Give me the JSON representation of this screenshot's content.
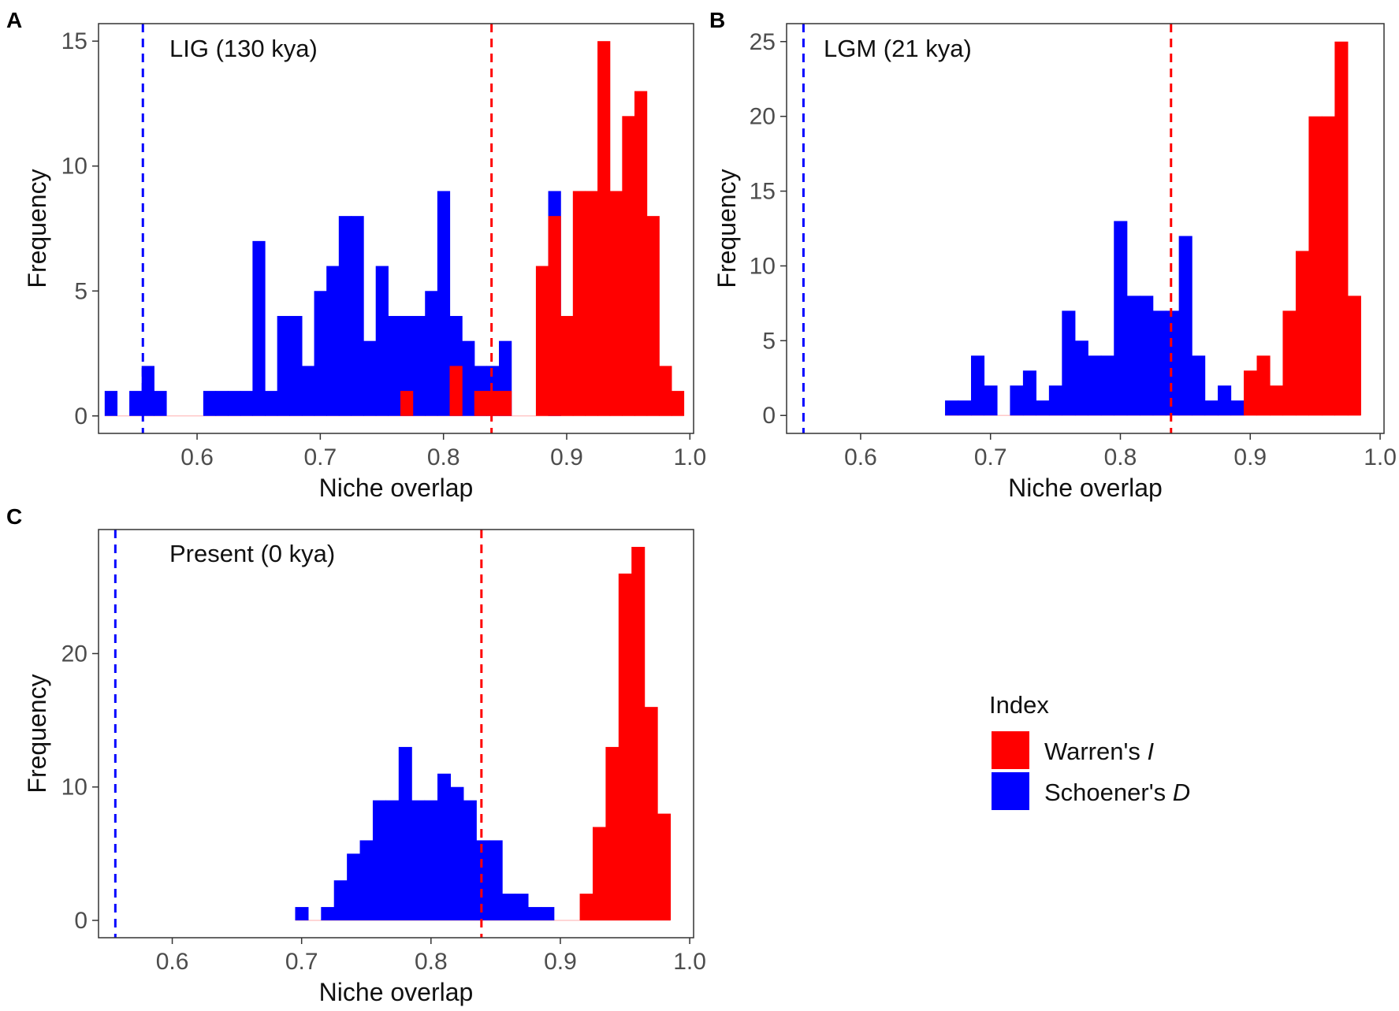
{
  "legend": {
    "title": "Index",
    "items": [
      {
        "label_prefix": "Warren's ",
        "label_symbol": "I",
        "color": "#ff0000"
      },
      {
        "label_prefix": "Schoener's ",
        "label_symbol": "D",
        "color": "#0000ff"
      }
    ]
  },
  "chart_data": [
    {
      "type": "histogram",
      "panel_label": "A",
      "annotation": "LIG (130 kya)",
      "xlabel": "Niche overlap",
      "ylabel": "Frequency",
      "xlim": [
        0.52,
        1.003
      ],
      "ylim": [
        -0.7,
        15.7
      ],
      "xticks": [
        0.6,
        0.7,
        0.8,
        0.9,
        1.0
      ],
      "xtick_labels": [
        "0.6",
        "0.7",
        "0.8",
        "0.9",
        "1.0"
      ],
      "yticks": [
        0,
        5,
        10,
        15
      ],
      "ytick_labels": [
        "0",
        "5",
        "10",
        "15"
      ],
      "bin_width": 0.01,
      "x": [
        0.53,
        0.54,
        0.55,
        0.56,
        0.57,
        0.58,
        0.59,
        0.6,
        0.61,
        0.62,
        0.63,
        0.64,
        0.65,
        0.66,
        0.67,
        0.68,
        0.69,
        0.7,
        0.71,
        0.72,
        0.73,
        0.74,
        0.75,
        0.76,
        0.77,
        0.78,
        0.79,
        0.8,
        0.81,
        0.82,
        0.83,
        0.84,
        0.85,
        0.86,
        0.87,
        0.88,
        0.89,
        0.9,
        0.91,
        0.92,
        0.93,
        0.94,
        0.95,
        0.96,
        0.97,
        0.98,
        0.99
      ],
      "series": [
        {
          "name": "Schoener's D",
          "color": "#0000ff",
          "values": [
            1,
            0,
            1,
            2,
            1,
            0,
            0,
            0,
            1,
            1,
            1,
            1,
            7,
            1,
            4,
            4,
            2,
            5,
            6,
            8,
            8,
            3,
            6,
            4,
            4,
            4,
            5,
            9,
            4,
            3,
            2,
            2,
            3,
            0,
            0,
            0,
            9,
            0,
            0,
            0,
            0,
            0,
            0,
            0,
            0,
            0,
            0
          ]
        },
        {
          "name": "Warren's I",
          "color": "#ff0000",
          "values": [
            0,
            0,
            0,
            0,
            0,
            0,
            0,
            0,
            0,
            0,
            0,
            0,
            0,
            0,
            0,
            0,
            0,
            0,
            0,
            0,
            0,
            0,
            0,
            0,
            1,
            0,
            0,
            0,
            2,
            0,
            1,
            1,
            1,
            0,
            0,
            6,
            8,
            4,
            9,
            9,
            15,
            9,
            12,
            13,
            8,
            2,
            1
          ]
        }
      ],
      "vlines": [
        {
          "x": 0.556,
          "color": "#0000ff",
          "style": "dashed"
        },
        {
          "x": 0.839,
          "color": "#ff0000",
          "style": "dashed"
        }
      ]
    },
    {
      "type": "histogram",
      "panel_label": "B",
      "annotation": "LGM (21 kya)",
      "xlabel": "Niche overlap",
      "ylabel": "Frequency",
      "xlim": [
        0.543,
        1.003
      ],
      "ylim": [
        -1.2,
        26.2
      ],
      "xticks": [
        0.6,
        0.7,
        0.8,
        0.9,
        1.0
      ],
      "xtick_labels": [
        "0.6",
        "0.7",
        "0.8",
        "0.9",
        "1.0"
      ],
      "yticks": [
        0,
        5,
        10,
        15,
        20,
        25
      ],
      "ytick_labels": [
        "0",
        "5",
        "10",
        "15",
        "20",
        "25"
      ],
      "bin_width": 0.01,
      "x": [
        0.67,
        0.68,
        0.69,
        0.7,
        0.71,
        0.72,
        0.73,
        0.74,
        0.75,
        0.76,
        0.77,
        0.78,
        0.79,
        0.8,
        0.81,
        0.82,
        0.83,
        0.84,
        0.85,
        0.86,
        0.87,
        0.88,
        0.89,
        0.9,
        0.91,
        0.92,
        0.93,
        0.94,
        0.95,
        0.96,
        0.97,
        0.98
      ],
      "series": [
        {
          "name": "Schoener's D",
          "color": "#0000ff",
          "values": [
            1,
            1,
            4,
            2,
            0,
            2,
            3,
            1,
            2,
            7,
            5,
            4,
            4,
            13,
            8,
            8,
            7,
            7,
            12,
            4,
            1,
            2,
            1,
            0,
            0,
            0,
            0,
            0,
            0,
            0,
            0,
            0
          ]
        },
        {
          "name": "Warren's I",
          "color": "#ff0000",
          "values": [
            0,
            0,
            0,
            0,
            0,
            0,
            0,
            0,
            0,
            0,
            0,
            0,
            0,
            0,
            0,
            0,
            0,
            0,
            0,
            0,
            0,
            0,
            0,
            3,
            4,
            2,
            7,
            11,
            20,
            20,
            25,
            8
          ]
        }
      ],
      "vlines": [
        {
          "x": 0.556,
          "color": "#0000ff",
          "style": "dashed"
        },
        {
          "x": 0.839,
          "color": "#ff0000",
          "style": "dashed"
        }
      ]
    },
    {
      "type": "histogram",
      "panel_label": "C",
      "annotation": "Present (0 kya)",
      "xlabel": "Niche overlap",
      "ylabel": "Frequency",
      "xlim": [
        0.543,
        1.003
      ],
      "ylim": [
        -1.3,
        29.3
      ],
      "xticks": [
        0.6,
        0.7,
        0.8,
        0.9,
        1.0
      ],
      "xtick_labels": [
        "0.6",
        "0.7",
        "0.8",
        "0.9",
        "1.0"
      ],
      "yticks": [
        0,
        10,
        20
      ],
      "ytick_labels": [
        "0",
        "10",
        "20"
      ],
      "bin_width": 0.01,
      "x": [
        0.7,
        0.71,
        0.72,
        0.73,
        0.74,
        0.75,
        0.76,
        0.77,
        0.78,
        0.79,
        0.8,
        0.81,
        0.82,
        0.83,
        0.84,
        0.85,
        0.86,
        0.87,
        0.88,
        0.89,
        0.9,
        0.91,
        0.92,
        0.93,
        0.94,
        0.95,
        0.96,
        0.97,
        0.98
      ],
      "series": [
        {
          "name": "Schoener's D",
          "color": "#0000ff",
          "values": [
            1,
            0,
            1,
            3,
            5,
            6,
            9,
            9,
            13,
            9,
            9,
            11,
            10,
            9,
            6,
            6,
            2,
            2,
            1,
            1,
            0,
            0,
            0,
            0,
            0,
            0,
            0,
            0,
            0
          ]
        },
        {
          "name": "Warren's I",
          "color": "#ff0000",
          "values": [
            0,
            0,
            0,
            0,
            0,
            0,
            0,
            0,
            0,
            0,
            0,
            0,
            0,
            0,
            0,
            0,
            0,
            0,
            0,
            0,
            0,
            0,
            2,
            7,
            13,
            26,
            28,
            16,
            8
          ]
        }
      ],
      "vlines": [
        {
          "x": 0.556,
          "color": "#0000ff",
          "style": "dashed"
        },
        {
          "x": 0.839,
          "color": "#ff0000",
          "style": "dashed"
        }
      ]
    }
  ]
}
